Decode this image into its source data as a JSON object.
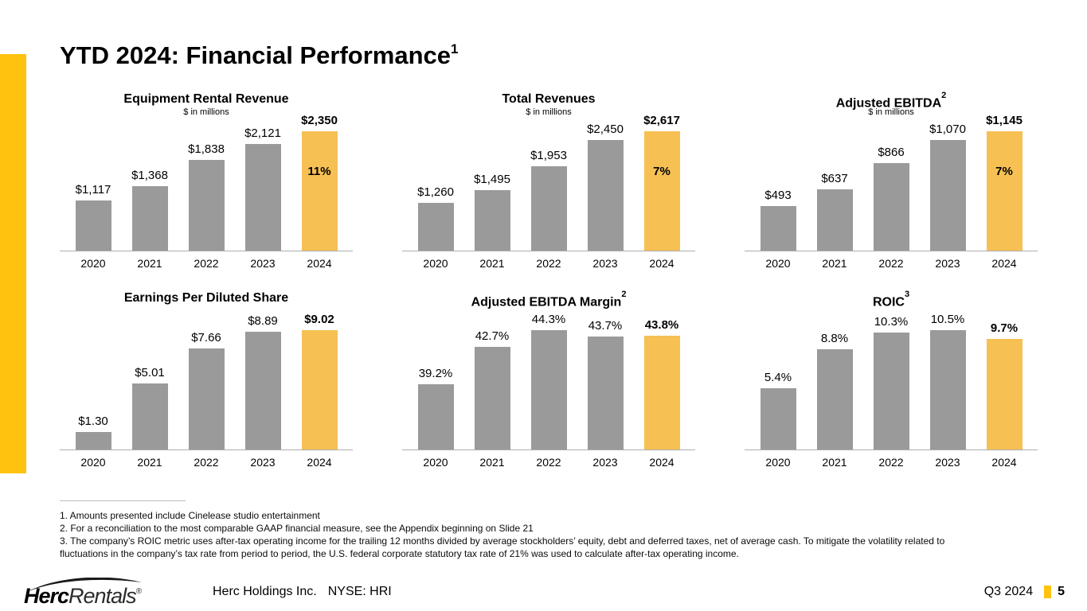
{
  "page": {
    "title": "YTD 2024: Financial Performance",
    "title_superscript": "1"
  },
  "colors": {
    "accent_yellow": "#FFC20E",
    "highlight_bar_gold": "#F6C053",
    "bar_gray": "#9A9A9A",
    "axis_line": "#ADADAD"
  },
  "chart_data": [
    {
      "id": "equipment-rental-revenue",
      "type": "bar",
      "title": "Equipment Rental Revenue",
      "title_superscript": "",
      "subtitle": "$ in millions",
      "categories": [
        "2020",
        "2021",
        "2022",
        "2023",
        "2024"
      ],
      "values": [
        1117,
        1368,
        1838,
        2121,
        2350
      ],
      "labels": [
        "$1,117",
        "$1,368",
        "$1,838",
        "$2,121",
        "$2,350"
      ],
      "highlight_index": 4,
      "growth_label": "11%",
      "ylim": [
        225,
        2350
      ],
      "grid": false,
      "legend": "none"
    },
    {
      "id": "total-revenues",
      "type": "bar",
      "title": "Total Revenues",
      "title_superscript": "",
      "subtitle": "$ in millions",
      "categories": [
        "2020",
        "2021",
        "2022",
        "2023",
        "2024"
      ],
      "values": [
        1260,
        1495,
        1953,
        2450,
        2617
      ],
      "labels": [
        "$1,260",
        "$1,495",
        "$1,953",
        "$2,450",
        "$2,617"
      ],
      "highlight_index": 4,
      "growth_label": "7%",
      "ylim": [
        345,
        2617
      ],
      "grid": false,
      "legend": "none"
    },
    {
      "id": "adjusted-ebitda",
      "type": "bar",
      "title": "Adjusted EBITDA",
      "title_superscript": "2",
      "subtitle": "$ in millions",
      "categories": [
        "2020",
        "2021",
        "2022",
        "2023",
        "2024"
      ],
      "values": [
        493,
        637,
        866,
        1070,
        1145
      ],
      "labels": [
        "$493",
        "$637",
        "$866",
        "$1,070",
        "$1,145"
      ],
      "highlight_index": 4,
      "growth_label": "7%",
      "ylim": [
        104,
        1145
      ],
      "grid": false,
      "legend": "none"
    },
    {
      "id": "earnings-per-diluted-share",
      "type": "bar",
      "title": "Earnings Per Diluted Share",
      "title_superscript": "",
      "subtitle": "",
      "categories": [
        "2020",
        "2021",
        "2022",
        "2023",
        "2024"
      ],
      "values": [
        1.3,
        5.01,
        7.66,
        8.89,
        9.02
      ],
      "labels": [
        "$1.30",
        "$5.01",
        "$7.66",
        "$8.89",
        "$9.02"
      ],
      "highlight_index": 4,
      "growth_label": "",
      "ylim": [
        0,
        9.02
      ],
      "grid": false,
      "legend": "none"
    },
    {
      "id": "adjusted-ebitda-margin",
      "type": "bar",
      "title": "Adjusted EBITDA Margin",
      "title_superscript": "2",
      "subtitle": "",
      "categories": [
        "2020",
        "2021",
        "2022",
        "2023",
        "2024"
      ],
      "values": [
        39.2,
        42.7,
        44.3,
        43.7,
        43.8
      ],
      "labels": [
        "39.2%",
        "42.7%",
        "44.3%",
        "43.7%",
        "43.8%"
      ],
      "highlight_index": 4,
      "growth_label": "",
      "ylim": [
        33,
        44.3
      ],
      "grid": false,
      "legend": "none"
    },
    {
      "id": "roic",
      "type": "bar",
      "title": "ROIC",
      "title_superscript": "3",
      "subtitle": "",
      "categories": [
        "2020",
        "2021",
        "2022",
        "2023",
        "2024"
      ],
      "values": [
        5.4,
        8.8,
        10.3,
        10.5,
        9.7
      ],
      "labels": [
        "5.4%",
        "8.8%",
        "10.3%",
        "10.5%",
        "9.7%"
      ],
      "highlight_index": 4,
      "growth_label": "",
      "ylim": [
        0,
        10.5
      ],
      "grid": false,
      "legend": "none"
    }
  ],
  "footnotes": [
    "1. Amounts presented include Cinelease studio entertainment",
    "2. For a reconciliation to the most comparable GAAP financial measure, see the Appendix beginning on Slide 21",
    "3. The company’s ROIC metric uses after-tax operating income for the trailing 12 months divided by average stockholders’ equity, debt and deferred taxes, net of average cash. To mitigate the volatility related to fluctuations in the company’s tax rate from period to period, the U.S. federal corporate statutory tax rate of 21% was used to calculate after-tax operating income."
  ],
  "footer": {
    "logo_bold": "Herc",
    "logo_light": "Rentals",
    "logo_reg": "®",
    "company": "Herc Holdings Inc.",
    "ticker": "NYSE: HRI",
    "quarter": "Q3 2024",
    "page_number": "5"
  }
}
